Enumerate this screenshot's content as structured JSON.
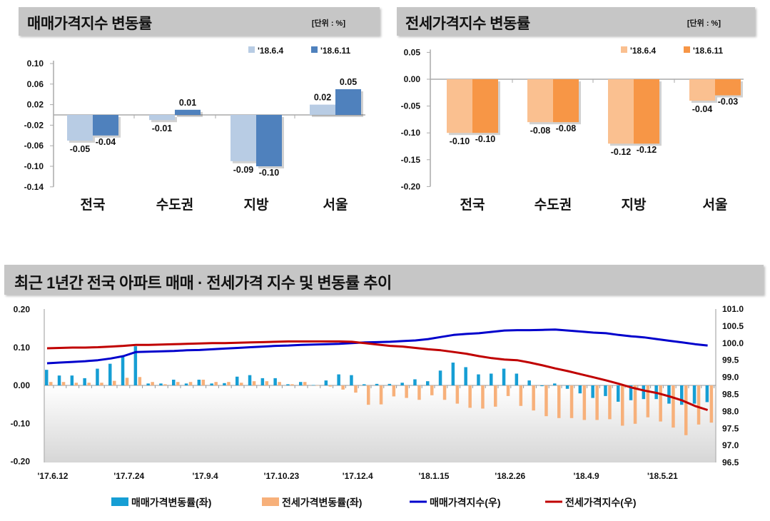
{
  "sale_panel": {
    "title": "매매가격지수 변동률",
    "unit": "[단위 : %]"
  },
  "jeonse_panel": {
    "title": "전세가격지수 변동률",
    "unit": "[단위 : %]"
  },
  "trend_panel": {
    "title": "최근 1년간 전국 아파트 매매 · 전세가격 지수 및 변동률 추이"
  },
  "chart_data": [
    {
      "type": "bar",
      "title": "매매가격지수 변동률",
      "unit": "[단위 : %]",
      "categories": [
        "전국",
        "수도권",
        "지방",
        "서울"
      ],
      "series": [
        {
          "name": "'18.6.4",
          "values": [
            -0.05,
            -0.01,
            -0.09,
            0.02
          ],
          "color": "#b8cce4"
        },
        {
          "name": "'18.6.11",
          "values": [
            -0.04,
            0.01,
            -0.1,
            0.05
          ],
          "color": "#4f81bd"
        }
      ],
      "ylim": [
        -0.14,
        0.1
      ],
      "yticks": [
        "0.10",
        "0.06",
        "0.02",
        "-0.02",
        "-0.06",
        "-0.10",
        "-0.14"
      ],
      "legend": "top-right",
      "grid": false
    },
    {
      "type": "bar",
      "title": "전세가격지수 변동률",
      "unit": "[단위 : %]",
      "categories": [
        "전국",
        "수도권",
        "지방",
        "서울"
      ],
      "series": [
        {
          "name": "'18.6.4",
          "values": [
            -0.1,
            -0.08,
            -0.12,
            -0.04
          ],
          "color": "#fac090"
        },
        {
          "name": "'18.6.11",
          "values": [
            -0.1,
            -0.08,
            -0.12,
            -0.03
          ],
          "color": "#f79646"
        }
      ],
      "ylim": [
        -0.2,
        0.05
      ],
      "yticks": [
        "0.05",
        "0.00",
        "-0.05",
        "-0.10",
        "-0.15",
        "-0.20"
      ],
      "legend": "top-right",
      "grid": false
    },
    {
      "type": "bar+line",
      "title": "최근 1년간 전국 아파트 매매 · 전세가격 지수 및 변동률 추이",
      "x_tick_labels": [
        "'17.6.12",
        "'17.7.24",
        "'17.9.4",
        "'17.10.23",
        "'17.12.4",
        "'18.1.15",
        "'18.2.26",
        "'18.4.9",
        "'18.5.21"
      ],
      "y_left": {
        "ylim": [
          -0.2,
          0.2
        ],
        "ticks": [
          "0.20",
          "0.10",
          "0.00",
          "-0.10",
          "-0.20"
        ]
      },
      "y_right": {
        "ylim": [
          96.5,
          101.0
        ],
        "ticks": [
          "101.0",
          "100.5",
          "100.0",
          "99.5",
          "99.0",
          "98.5",
          "98.0",
          "97.5",
          "97.0",
          "96.5"
        ]
      },
      "legend": "bottom",
      "grid": false,
      "series": [
        {
          "name": "매매가격변동률(좌)",
          "kind": "bar",
          "axis": "left",
          "color": "#169ed4",
          "values": [
            0.041,
            0.026,
            0.026,
            0.019,
            0.044,
            0.057,
            0.078,
            0.103,
            0.005,
            0.005,
            0.015,
            0.005,
            0.015,
            0.005,
            0.006,
            0.023,
            0.027,
            0.019,
            0.019,
            0.003,
            0.009,
            0.001,
            0.013,
            0.029,
            0.027,
            0.003,
            0.004,
            0.004,
            0.007,
            0.016,
            0.011,
            0.039,
            0.06,
            0.048,
            0.029,
            0.031,
            0.044,
            0.031,
            0.013,
            -0.002,
            0.005,
            -0.009,
            -0.021,
            -0.033,
            -0.028,
            -0.043,
            -0.039,
            -0.036,
            -0.036,
            -0.048,
            -0.051,
            -0.048,
            -0.044
          ]
        },
        {
          "name": "전세가격변동률(좌)",
          "kind": "bar",
          "axis": "left",
          "color": "#f7b07a",
          "values": [
            0.009,
            0.009,
            0.007,
            0.007,
            0.007,
            0.012,
            0.02,
            0.022,
            0.009,
            0.003,
            0.009,
            0.009,
            0.015,
            0.009,
            0.009,
            0.007,
            0.011,
            0.011,
            0.009,
            0.003,
            0.009,
            0.0,
            -0.003,
            -0.011,
            -0.019,
            -0.051,
            -0.05,
            -0.029,
            -0.033,
            -0.038,
            -0.026,
            -0.038,
            -0.048,
            -0.059,
            -0.061,
            -0.056,
            -0.028,
            -0.054,
            -0.066,
            -0.081,
            -0.086,
            -0.086,
            -0.091,
            -0.091,
            -0.089,
            -0.106,
            -0.101,
            -0.084,
            -0.095,
            -0.111,
            -0.131,
            -0.103,
            -0.098
          ]
        },
        {
          "name": "매매가격지수(우)",
          "kind": "line",
          "axis": "right",
          "color": "#0000cc",
          "values": [
            99.41,
            99.43,
            99.45,
            99.47,
            99.5,
            99.55,
            99.62,
            99.74,
            99.75,
            99.76,
            99.77,
            99.79,
            99.8,
            99.82,
            99.84,
            99.86,
            99.88,
            99.9,
            99.92,
            99.93,
            99.95,
            99.96,
            99.97,
            99.98,
            100.0,
            100.02,
            100.03,
            100.04,
            100.06,
            100.08,
            100.12,
            100.18,
            100.24,
            100.27,
            100.29,
            100.33,
            100.37,
            100.38,
            100.38,
            100.39,
            100.4,
            100.37,
            100.34,
            100.31,
            100.29,
            100.24,
            100.2,
            100.17,
            100.12,
            100.07,
            100.02,
            99.97,
            99.93
          ]
        },
        {
          "name": "전세가격지수(우)",
          "kind": "line",
          "axis": "right",
          "color": "#c00000",
          "values": [
            99.85,
            99.86,
            99.87,
            99.87,
            99.88,
            99.9,
            99.92,
            99.95,
            99.95,
            99.96,
            99.97,
            99.98,
            99.99,
            100.0,
            100.0,
            100.01,
            100.02,
            100.03,
            100.04,
            100.05,
            100.05,
            100.05,
            100.05,
            100.05,
            100.04,
            100.0,
            99.96,
            99.92,
            99.9,
            99.86,
            99.82,
            99.79,
            99.74,
            99.69,
            99.62,
            99.56,
            99.52,
            99.5,
            99.43,
            99.35,
            99.26,
            99.18,
            99.09,
            99.0,
            98.91,
            98.81,
            98.7,
            98.61,
            98.54,
            98.44,
            98.32,
            98.16,
            98.04
          ]
        }
      ]
    }
  ]
}
